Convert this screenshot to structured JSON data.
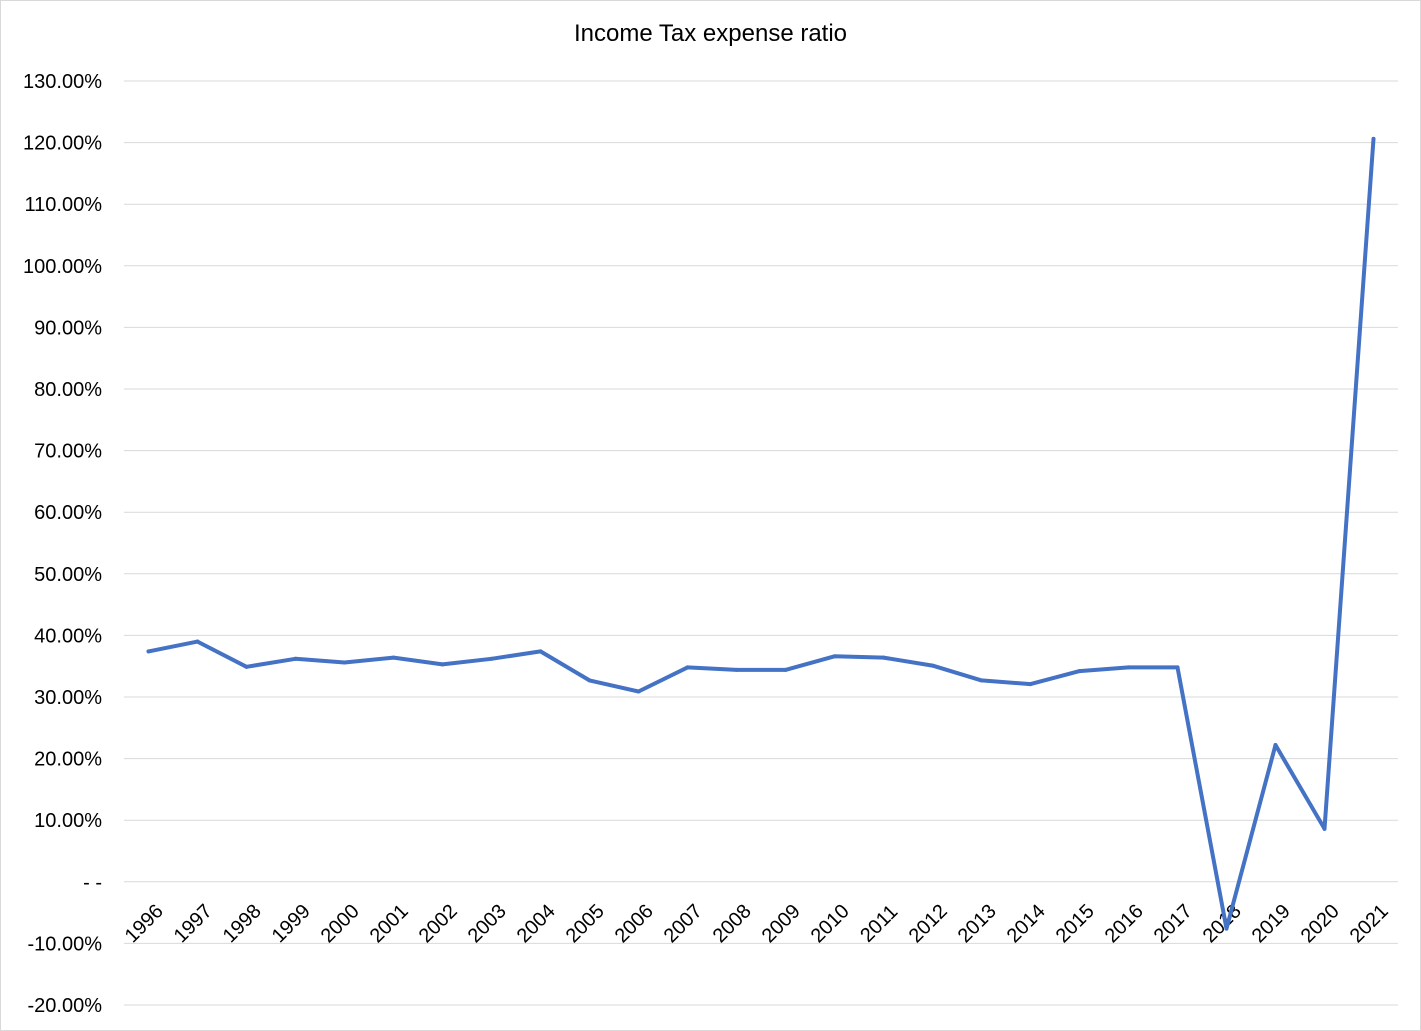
{
  "chart_data": {
    "type": "line",
    "title": "Income Tax expense ratio",
    "xlabel": "",
    "ylabel": "",
    "categories": [
      "1996",
      "1997",
      "1998",
      "1999",
      "2000",
      "2001",
      "2002",
      "2003",
      "2004",
      "2005",
      "2006",
      "2007",
      "2008",
      "2009",
      "2010",
      "2011",
      "2012",
      "2013",
      "2014",
      "2015",
      "2016",
      "2017",
      "2018",
      "2019",
      "2020",
      "2021"
    ],
    "series": [
      {
        "values": [
          37.4,
          39.0,
          34.9,
          36.2,
          35.6,
          36.4,
          35.3,
          36.2,
          37.4,
          32.7,
          30.9,
          34.8,
          34.4,
          34.4,
          36.6,
          36.4,
          35.1,
          32.7,
          32.1,
          34.2,
          34.8,
          34.8,
          -7.6,
          22.2,
          8.6,
          120.6
        ],
        "color": "#4472c4"
      }
    ],
    "yticks": [
      "130.00%",
      "120.00%",
      "110.00%",
      "100.00%",
      "90.00%",
      "80.00%",
      "70.00%",
      "60.00%",
      "50.00%",
      "40.00%",
      "30.00%",
      "20.00%",
      "10.00%",
      "- -",
      "-10.00%",
      "-20.00%"
    ],
    "ylim": [
      -20,
      130
    ],
    "grid": true,
    "legend": "none"
  }
}
